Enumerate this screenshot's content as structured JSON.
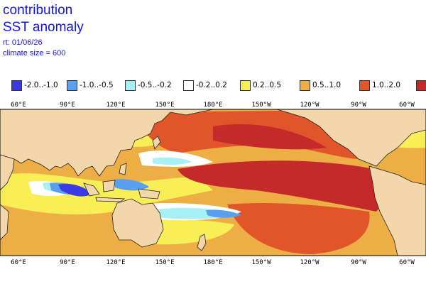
{
  "title_line1": "contribution",
  "title_line2": "SST anomaly",
  "start_line": "rt: 01/06/26",
  "climate_line": "climate size = 600",
  "legend": [
    {
      "label": "-2.0..-1.0",
      "color": "#3a3ae6"
    },
    {
      "label": "-1.0..-0.5",
      "color": "#5aa0f0"
    },
    {
      "label": "-0.5..-0.2",
      "color": "#a8f0f6"
    },
    {
      "label": "-0.2..0.2",
      "color": "#ffffff"
    },
    {
      "label": "0.2..0.5",
      "color": "#f8ee55"
    },
    {
      "label": "0.5..1.0",
      "color": "#edae45"
    },
    {
      "label": "1.0..2.0",
      "color": "#e0562a"
    },
    {
      "label": "",
      "color": "#c42a2a"
    }
  ],
  "land_color": "#f3d6aa",
  "lon_ticks_top": [
    "60°E",
    "90°E",
    "120°E",
    "150°E",
    "180°E",
    "150°W",
    "120°W",
    "90°W",
    "60°W"
  ],
  "lon_ticks_bottom": [
    "60°E",
    "90°E",
    "120°E",
    "150°E",
    "180°E",
    "150°W",
    "120°W",
    "90°W",
    "60°W"
  ]
}
